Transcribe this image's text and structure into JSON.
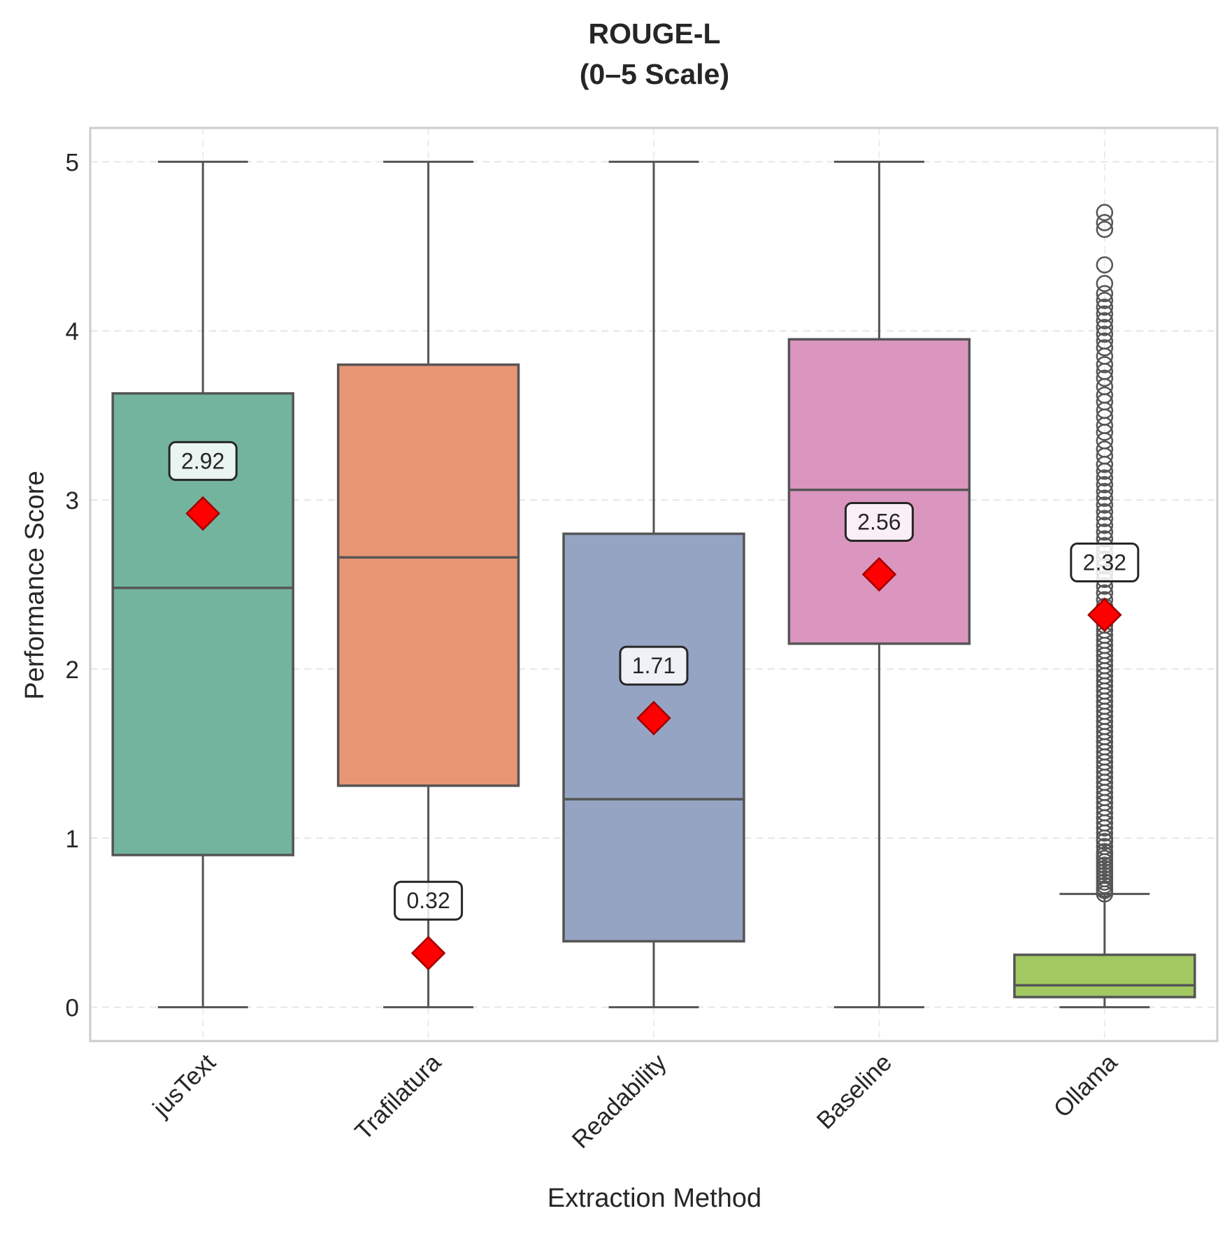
{
  "chart_data": {
    "type": "box",
    "title": "ROUGE-L",
    "subtitle": "(0–5 Scale)",
    "xlabel": "Extraction Method",
    "ylabel": "Performance Score",
    "ylim": [
      -0.2,
      5.2
    ],
    "yticks": [
      "0",
      "1",
      "2",
      "3",
      "4",
      "5"
    ],
    "grid": true,
    "categories": [
      "jusText",
      "Trafilatura",
      "Readability",
      "Baseline",
      "Ollama"
    ],
    "boxes": [
      {
        "category": "jusText",
        "whisker_low": 0,
        "q1": 0.9,
        "median": 2.48,
        "q3": 3.63,
        "whisker_high": 5,
        "mean": 2.92,
        "mean_label": "2.92",
        "color": "#73b49e",
        "outliers": []
      },
      {
        "category": "Trafilatura",
        "whisker_low": 0,
        "q1": 1.31,
        "median": 2.66,
        "q3": 3.8,
        "whisker_high": 5,
        "mean": 0.32,
        "mean_label": "0.32",
        "color": "#e79674",
        "outliers": []
      },
      {
        "category": "Readability",
        "whisker_low": 0,
        "q1": 0.39,
        "median": 1.23,
        "q3": 2.8,
        "whisker_high": 5,
        "mean": 1.71,
        "mean_label": "1.71",
        "color": "#95a4c3",
        "outliers": []
      },
      {
        "category": "Baseline",
        "whisker_low": 0,
        "q1": 2.15,
        "median": 3.06,
        "q3": 3.95,
        "whisker_high": 5,
        "mean": 2.56,
        "mean_label": "2.56",
        "color": "#db96bf",
        "outliers": []
      },
      {
        "category": "Ollama",
        "whisker_low": 0,
        "q1": 0.06,
        "median": 0.13,
        "q3": 0.31,
        "whisker_high": 0.67,
        "mean": 2.32,
        "mean_label": "2.32",
        "color": "#a2c961",
        "outliers": [
          0.67,
          0.69,
          0.7,
          0.72,
          0.74,
          0.76,
          0.78,
          0.8,
          0.82,
          0.84,
          0.86,
          0.88,
          0.9,
          0.92,
          0.95,
          0.98,
          1.0,
          1.03,
          1.06,
          1.09,
          1.12,
          1.15,
          1.18,
          1.21,
          1.24,
          1.27,
          1.3,
          1.33,
          1.36,
          1.39,
          1.42,
          1.45,
          1.48,
          1.51,
          1.54,
          1.57,
          1.6,
          1.63,
          1.66,
          1.69,
          1.72,
          1.75,
          1.78,
          1.81,
          1.84,
          1.87,
          1.9,
          1.93,
          1.96,
          1.99,
          2.02,
          2.05,
          2.08,
          2.11,
          2.14,
          2.17,
          2.2,
          2.23,
          2.26,
          2.29,
          2.33,
          2.37,
          2.41,
          2.45,
          2.49,
          2.53,
          2.57,
          2.61,
          2.65,
          2.69,
          2.73,
          2.77,
          2.81,
          2.85,
          2.89,
          2.93,
          2.97,
          3.01,
          3.05,
          3.09,
          3.13,
          3.17,
          3.21,
          3.26,
          3.3,
          3.35,
          3.4,
          3.44,
          3.49,
          3.53,
          3.58,
          3.62,
          3.67,
          3.72,
          3.76,
          3.8,
          3.85,
          3.9,
          3.94,
          3.98,
          4.02,
          4.06,
          4.1,
          4.14,
          4.18,
          4.22,
          4.28,
          4.39,
          4.6,
          4.64,
          4.7
        ]
      }
    ],
    "mean_marker_color": "#ff0000",
    "box_edge_color": "#555555"
  }
}
